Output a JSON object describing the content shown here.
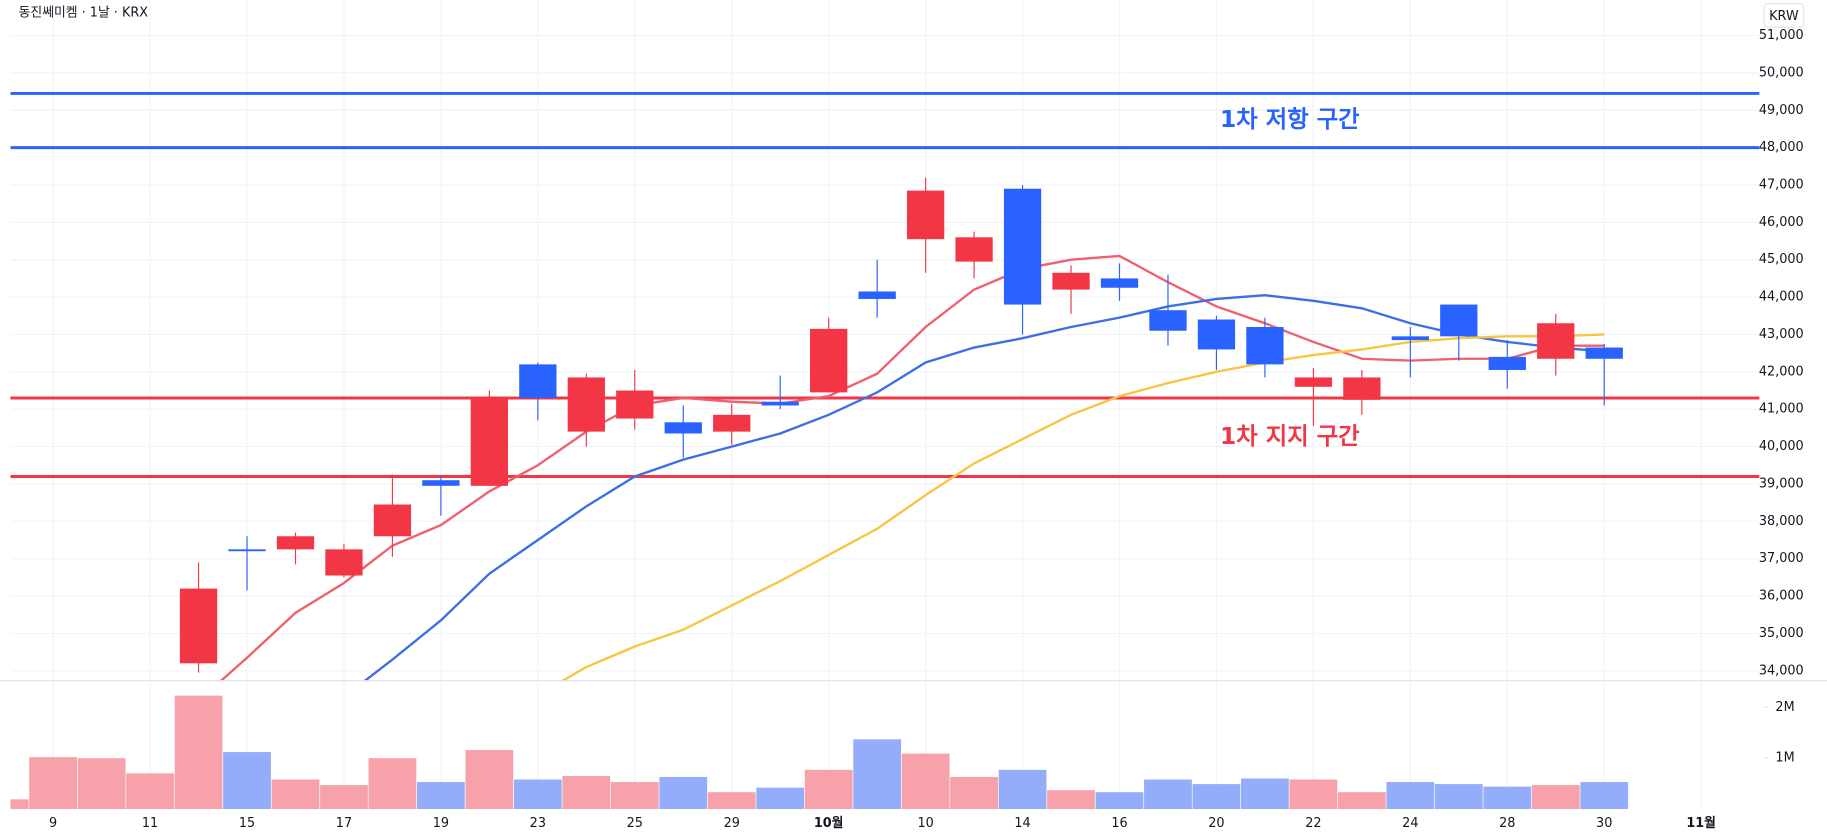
{
  "chart_data": {
    "type": "candlestick",
    "title": "동진쎄미켐 · 1날 · KRX",
    "currency": "KRW",
    "categories": [
      null,
      "9",
      null,
      "11",
      null,
      "15",
      null,
      "17",
      null,
      "19",
      null,
      "23",
      null,
      "25",
      null,
      "29",
      null,
      "10월",
      null,
      "10",
      null,
      "14",
      null,
      "16",
      null,
      "20",
      null,
      "22",
      null,
      "24",
      null,
      "28",
      null,
      "30",
      null,
      "11월"
    ],
    "open": [
      null,
      null,
      null,
      null,
      34200,
      37250,
      37250,
      36550,
      37600,
      39100,
      38950,
      42200,
      40400,
      40750,
      40650,
      40400,
      41200,
      41450,
      44150,
      45550,
      44950,
      46900,
      44200,
      44500,
      43650,
      43400,
      43200,
      41600,
      41250,
      42950,
      43800,
      42400,
      42350,
      42650,
      null,
      null
    ],
    "high": [
      null,
      null,
      null,
      null,
      36900,
      37600,
      37700,
      37400,
      39250,
      39200,
      41500,
      42250,
      41950,
      42050,
      41100,
      41150,
      41900,
      43450,
      45000,
      47200,
      45750,
      47000,
      44850,
      44900,
      44600,
      43500,
      43450,
      42100,
      42050,
      43200,
      43800,
      42850,
      43550,
      42750,
      null,
      null
    ],
    "low": [
      null,
      null,
      null,
      null,
      33950,
      36150,
      36850,
      36500,
      37050,
      38150,
      38950,
      40700,
      40000,
      40450,
      39700,
      40050,
      41000,
      41450,
      43450,
      44650,
      44500,
      43000,
      43550,
      43900,
      42700,
      42050,
      41850,
      40550,
      40850,
      41850,
      42300,
      41550,
      41900,
      41100,
      null,
      null
    ],
    "close": [
      null,
      null,
      null,
      null,
      36200,
      37200,
      37600,
      37250,
      38450,
      38950,
      41300,
      41300,
      41850,
      41500,
      40350,
      40850,
      41100,
      43150,
      43950,
      46850,
      45600,
      43800,
      44650,
      44250,
      43100,
      42600,
      42200,
      41850,
      41850,
      42850,
      42950,
      42050,
      43300,
      42350,
      null,
      null
    ],
    "up_color": "#f23645",
    "down_color": "#2962ff",
    "series": [
      {
        "color": "#f0606c",
        "values": [
          null,
          null,
          null,
          null,
          33200,
          34350,
          35550,
          36350,
          37350,
          37900,
          38800,
          39500,
          40400,
          41100,
          41300,
          41200,
          41150,
          41350,
          41950,
          43200,
          44200,
          44750,
          45000,
          45100,
          44400,
          43750,
          43300,
          42800,
          42350,
          42300,
          42350,
          42350,
          42700,
          42700,
          null,
          null
        ]
      },
      {
        "color": "#3d6ee6",
        "values": [
          null,
          null,
          null,
          null,
          null,
          null,
          null,
          33300,
          34300,
          35350,
          36600,
          37500,
          38400,
          39200,
          39650,
          40000,
          40350,
          40850,
          41450,
          42250,
          42650,
          42900,
          43200,
          43450,
          43750,
          43950,
          44050,
          43900,
          43700,
          43300,
          43000,
          42800,
          42650,
          42550,
          null,
          null
        ]
      },
      {
        "color": "#f7c542",
        "values": [
          null,
          null,
          null,
          null,
          null,
          null,
          null,
          null,
          null,
          null,
          null,
          33350,
          34100,
          34650,
          35100,
          35750,
          36400,
          37100,
          37800,
          38700,
          39550,
          40200,
          40850,
          41350,
          41700,
          42000,
          42250,
          42450,
          42600,
          42800,
          42900,
          42950,
          42950,
          43000,
          null,
          null
        ]
      }
    ],
    "zones": [
      {
        "label": "1차 저항 구간",
        "color": "#2962ff",
        "range": [
          48000,
          49450
        ]
      },
      {
        "label": "1차 지지 구간",
        "color": "#f23645",
        "range": [
          39200,
          41300
        ]
      }
    ],
    "ylim": [
      33750,
      51950
    ],
    "yticks": [
      {
        "value": 34000,
        "label": "34,000"
      },
      {
        "value": 35000,
        "label": "35,000"
      },
      {
        "value": 36000,
        "label": "36,000"
      },
      {
        "value": 37000,
        "label": "37,000"
      },
      {
        "value": 38000,
        "label": "38,000"
      },
      {
        "value": 39000,
        "label": "39,000"
      },
      {
        "value": 40000,
        "label": "40,000"
      },
      {
        "value": 41000,
        "label": "41,000"
      },
      {
        "value": 42000,
        "label": "42,000"
      },
      {
        "value": 43000,
        "label": "43,000"
      },
      {
        "value": 44000,
        "label": "44,000"
      },
      {
        "value": 45000,
        "label": "45,000"
      },
      {
        "value": 46000,
        "label": "46,000"
      },
      {
        "value": 47000,
        "label": "47,000"
      },
      {
        "value": 48000,
        "label": "48,000"
      },
      {
        "value": 49000,
        "label": "49,000"
      },
      {
        "value": 50000,
        "label": "50,000"
      },
      {
        "value": 51000,
        "label": "51,000"
      }
    ],
    "grid": true,
    "volume": {
      "type": "bar",
      "values": [
        190000,
        1020000,
        1000000,
        700000,
        2230000,
        1120000,
        580000,
        470000,
        1000000,
        530000,
        1160000,
        580000,
        650000,
        530000,
        630000,
        330000,
        420000,
        770000,
        1370000,
        1090000,
        630000,
        770000,
        370000,
        330000,
        580000,
        490000,
        600000,
        580000,
        330000,
        530000,
        490000,
        440000,
        470000,
        530000,
        null,
        null
      ],
      "colors": [
        "#f7a1aa",
        "#f7a1aa",
        "#f7a1aa",
        "#f7a1aa",
        "#f7a1aa",
        "#93adfa",
        "#f7a1aa",
        "#f7a1aa",
        "#f7a1aa",
        "#93adfa",
        "#f7a1aa",
        "#93adfa",
        "#f7a1aa",
        "#f7a1aa",
        "#93adfa",
        "#f7a1aa",
        "#93adfa",
        "#f7a1aa",
        "#93adfa",
        "#f7a1aa",
        "#f7a1aa",
        "#93adfa",
        "#f7a1aa",
        "#93adfa",
        "#93adfa",
        "#93adfa",
        "#93adfa",
        "#f7a1aa",
        "#f7a1aa",
        "#93adfa",
        "#93adfa",
        "#93adfa",
        "#f7a1aa",
        "#93adfa",
        null,
        null
      ],
      "ylim": [
        0,
        2500000
      ],
      "yticks": [
        {
          "value": 1000000,
          "label": "1M"
        },
        {
          "value": 2000000,
          "label": "2M"
        }
      ]
    }
  }
}
